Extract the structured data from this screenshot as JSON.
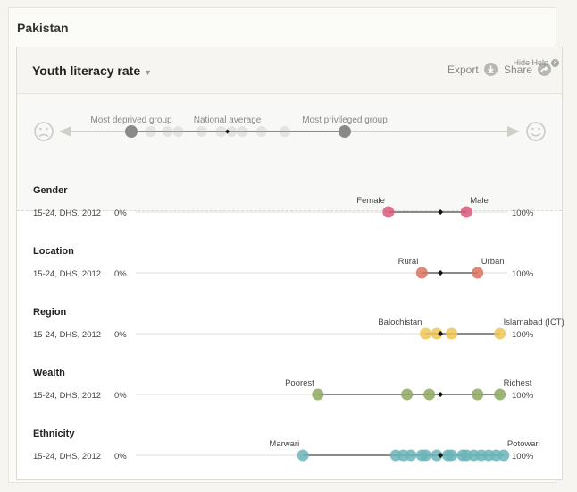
{
  "country": "Pakistan",
  "indicator": {
    "title": "Youth literacy rate",
    "export_label": "Export",
    "share_label": "Share"
  },
  "help": {
    "hide_label": "Hide Help",
    "deprived_label": "Most deprived group",
    "average_label": "National average",
    "privileged_label": "Most privileged group",
    "legend_points": [
      0.0,
      0.09,
      0.17,
      0.22,
      0.33,
      0.42,
      0.47,
      0.52,
      0.61,
      0.72,
      1.0
    ],
    "deprived_point": 0.0,
    "average_point": 0.45,
    "privileged_point": 1.0
  },
  "axis": {
    "min_label": "0%",
    "max_label": "100%"
  },
  "colors": {
    "gender": "#d9597a",
    "location": "#d9735f",
    "region": "#eec557",
    "wealth": "#8ea85f",
    "ethnicity": "#6ab5ba",
    "average_marker": "#111111",
    "range_line": "#444444"
  },
  "chart_data": {
    "type": "scatter",
    "x_range": [
      0,
      100
    ],
    "rows": [
      {
        "name": "Gender",
        "meta": "15-24, DHS, 2012",
        "color_key": "gender",
        "low_label": "Female",
        "high_label": "Male",
        "average": 82,
        "points": [
          68,
          89
        ]
      },
      {
        "name": "Location",
        "meta": "15-24, DHS, 2012",
        "color_key": "location",
        "low_label": "Rural",
        "high_label": "Urban",
        "average": 82,
        "points": [
          77,
          92
        ]
      },
      {
        "name": "Region",
        "meta": "15-24, DHS, 2012",
        "color_key": "region",
        "low_label": "Balochistan",
        "high_label": "Islamabad (ICT)",
        "average": 82,
        "points": [
          78,
          81,
          85,
          98
        ]
      },
      {
        "name": "Wealth",
        "meta": "15-24, DHS, 2012",
        "color_key": "wealth",
        "low_label": "Poorest",
        "high_label": "Richest",
        "average": 82,
        "points": [
          49,
          73,
          79,
          92,
          98
        ]
      },
      {
        "name": "Ethnicity",
        "meta": "15-24, DHS, 2012",
        "color_key": "ethnicity",
        "low_label": "Marwari",
        "high_label": "Potowari",
        "average": 82,
        "points": [
          45,
          70,
          72,
          74,
          77,
          78,
          81,
          84,
          85,
          88,
          89,
          91,
          93,
          95,
          97,
          99
        ]
      }
    ]
  }
}
